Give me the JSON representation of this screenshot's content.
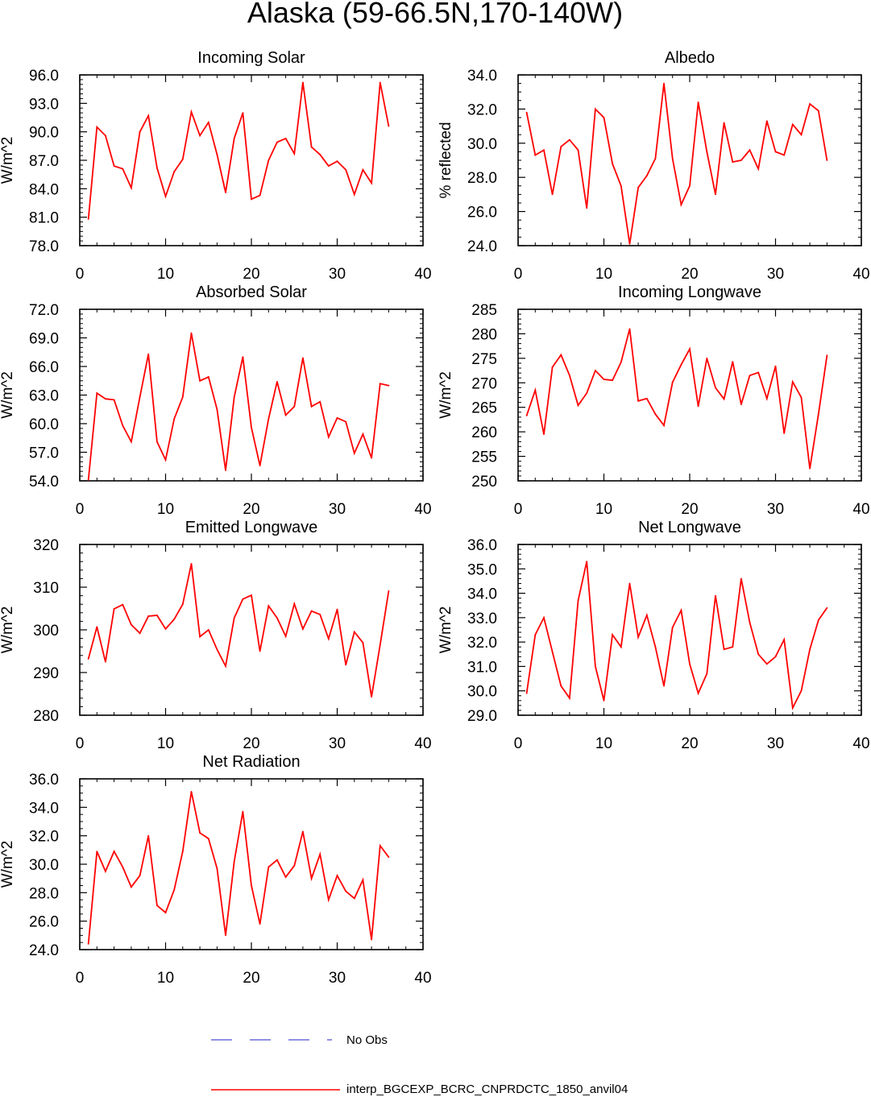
{
  "figure": {
    "title": "Alaska (59-66.5N,170-140W)",
    "legend": [
      {
        "label": "No Obs",
        "color": "#6b6bdc",
        "style": "dashed"
      },
      {
        "label": "interp_BGCEXP_BCRC_CNPRDCTC_1850_anvil04",
        "color": "#ff0000",
        "style": "solid"
      }
    ]
  },
  "chart_data": [
    {
      "type": "line",
      "title": "Incoming Solar",
      "xlabel": "",
      "ylabel": "W/m^2",
      "xlim": [
        0,
        40
      ],
      "ylim": [
        78,
        96
      ],
      "xticks": [
        0,
        10,
        20,
        30,
        40
      ],
      "yticks": [
        78,
        81,
        84,
        87,
        90,
        93,
        96
      ],
      "ytick_decimals": 1,
      "series": [
        {
          "name": "interp_BGCEXP_BCRC_CNPRDCTC_1850_anvil04",
          "color": "#ff0000",
          "x": [
            1,
            2,
            3,
            4,
            5,
            6,
            7,
            8,
            9,
            10,
            11,
            12,
            13,
            14,
            15,
            16,
            17,
            18,
            19,
            20,
            21,
            22,
            23,
            24,
            25,
            26,
            27,
            28,
            29,
            30,
            31,
            32,
            33,
            34,
            35,
            36
          ],
          "values": [
            80.8,
            90.5,
            89.6,
            86.4,
            86.1,
            84.1,
            90.0,
            91.7,
            86.2,
            83.2,
            85.8,
            87.1,
            92.1,
            89.6,
            91.0,
            87.6,
            83.6,
            89.3,
            92.0,
            82.9,
            83.3,
            87.0,
            88.9,
            89.3,
            87.7,
            95.2,
            88.4,
            87.6,
            86.4,
            86.9,
            86.0,
            83.4,
            86.0,
            84.6,
            95.2,
            90.6
          ]
        }
      ]
    },
    {
      "type": "line",
      "title": "Albedo",
      "xlabel": "",
      "ylabel": "% reflected",
      "xlim": [
        0,
        40
      ],
      "ylim": [
        24,
        34
      ],
      "xticks": [
        0,
        10,
        20,
        30,
        40
      ],
      "yticks": [
        24,
        26,
        28,
        30,
        32,
        34
      ],
      "ytick_decimals": 1,
      "series": [
        {
          "name": "interp_BGCEXP_BCRC_CNPRDCTC_1850_anvil04",
          "color": "#ff0000",
          "x": [
            1,
            2,
            3,
            4,
            5,
            6,
            7,
            8,
            9,
            10,
            11,
            12,
            13,
            14,
            15,
            16,
            17,
            18,
            19,
            20,
            21,
            22,
            23,
            24,
            25,
            26,
            27,
            28,
            29,
            30,
            31,
            32,
            33,
            34,
            35,
            36
          ],
          "values": [
            31.8,
            29.3,
            29.6,
            27.0,
            29.8,
            30.2,
            29.6,
            26.2,
            32.0,
            31.5,
            28.8,
            27.5,
            24.1,
            27.4,
            28.1,
            29.1,
            33.5,
            29.1,
            26.4,
            27.5,
            32.4,
            29.5,
            27.0,
            31.2,
            28.9,
            29.0,
            29.6,
            28.5,
            31.3,
            29.5,
            29.3,
            31.1,
            30.5,
            32.3,
            31.9,
            29.0
          ]
        }
      ]
    },
    {
      "type": "line",
      "title": "Absorbed Solar",
      "xlabel": "",
      "ylabel": "W/m^2",
      "xlim": [
        0,
        40
      ],
      "ylim": [
        54,
        72
      ],
      "xticks": [
        0,
        10,
        20,
        30,
        40
      ],
      "yticks": [
        54,
        57,
        60,
        63,
        66,
        69,
        72
      ],
      "ytick_decimals": 1,
      "series": [
        {
          "name": "interp_BGCEXP_BCRC_CNPRDCTC_1850_anvil04",
          "color": "#ff0000",
          "x": [
            1,
            2,
            3,
            4,
            5,
            6,
            7,
            8,
            9,
            10,
            11,
            12,
            13,
            14,
            15,
            16,
            17,
            18,
            19,
            20,
            21,
            22,
            23,
            24,
            25,
            26,
            27,
            28,
            29,
            30,
            31,
            32,
            33,
            34,
            35,
            36
          ],
          "values": [
            54.1,
            63.2,
            62.6,
            62.5,
            59.8,
            58.1,
            62.8,
            67.3,
            58.1,
            56.2,
            60.5,
            62.8,
            69.5,
            64.5,
            64.9,
            61.5,
            55.1,
            62.8,
            67.0,
            59.6,
            55.6,
            60.5,
            64.4,
            60.9,
            61.8,
            66.9,
            61.8,
            62.3,
            58.6,
            60.6,
            60.2,
            56.9,
            58.9,
            56.4,
            64.2,
            64.0
          ]
        }
      ]
    },
    {
      "type": "line",
      "title": "Incoming Longwave",
      "xlabel": "",
      "ylabel": "W/m^2",
      "xlim": [
        0,
        40
      ],
      "ylim": [
        250,
        285
      ],
      "xticks": [
        0,
        10,
        20,
        30,
        40
      ],
      "yticks": [
        250,
        255,
        260,
        265,
        270,
        275,
        280,
        285
      ],
      "ytick_decimals": 0,
      "series": [
        {
          "name": "interp_BGCEXP_BCRC_CNPRDCTC_1850_anvil04",
          "color": "#ff0000",
          "x": [
            1,
            2,
            3,
            4,
            5,
            6,
            7,
            8,
            9,
            10,
            11,
            12,
            13,
            14,
            15,
            16,
            17,
            18,
            19,
            20,
            21,
            22,
            23,
            24,
            25,
            26,
            27,
            28,
            29,
            30,
            31,
            32,
            33,
            34,
            35,
            36
          ],
          "values": [
            263.3,
            268.5,
            259.5,
            273.2,
            275.7,
            271.5,
            265.4,
            267.9,
            272.5,
            270.7,
            270.5,
            274.2,
            281.0,
            266.3,
            266.8,
            263.6,
            261.3,
            270.1,
            273.7,
            276.9,
            265.2,
            275.0,
            269.0,
            266.7,
            274.3,
            265.6,
            271.5,
            272.1,
            266.8,
            273.4,
            259.7,
            270.2,
            267.0,
            252.5,
            263.6,
            275.6
          ]
        }
      ]
    },
    {
      "type": "line",
      "title": "Emitted Longwave",
      "xlabel": "",
      "ylabel": "W/m^2",
      "xlim": [
        0,
        40
      ],
      "ylim": [
        280,
        320
      ],
      "xticks": [
        0,
        10,
        20,
        30,
        40
      ],
      "yticks": [
        280,
        290,
        300,
        310,
        320
      ],
      "ytick_decimals": 0,
      "series": [
        {
          "name": "interp_BGCEXP_BCRC_CNPRDCTC_1850_anvil04",
          "color": "#ff0000",
          "x": [
            1,
            2,
            3,
            4,
            5,
            6,
            7,
            8,
            9,
            10,
            11,
            12,
            13,
            14,
            15,
            16,
            17,
            18,
            19,
            20,
            21,
            22,
            23,
            24,
            25,
            26,
            27,
            28,
            29,
            30,
            31,
            32,
            33,
            34,
            35,
            36
          ],
          "values": [
            293.2,
            300.7,
            292.5,
            304.9,
            305.9,
            301.2,
            299.2,
            303.2,
            303.4,
            300.2,
            302.5,
            306.0,
            315.5,
            298.4,
            300.0,
            295.4,
            291.5,
            302.8,
            307.2,
            308.1,
            295.0,
            305.6,
            302.8,
            298.5,
            306.1,
            300.2,
            304.4,
            303.6,
            297.9,
            304.8,
            291.8,
            299.5,
            297.0,
            284.3,
            296.5,
            309.1
          ]
        }
      ]
    },
    {
      "type": "line",
      "title": "Net Longwave",
      "xlabel": "",
      "ylabel": "W/m^2",
      "xlim": [
        0,
        40
      ],
      "ylim": [
        29,
        36
      ],
      "xticks": [
        0,
        10,
        20,
        30,
        40
      ],
      "yticks": [
        29,
        30,
        31,
        32,
        33,
        34,
        35,
        36
      ],
      "ytick_decimals": 1,
      "series": [
        {
          "name": "interp_BGCEXP_BCRC_CNPRDCTC_1850_anvil04",
          "color": "#ff0000",
          "x": [
            1,
            2,
            3,
            4,
            5,
            6,
            7,
            8,
            9,
            10,
            11,
            12,
            13,
            14,
            15,
            16,
            17,
            18,
            19,
            20,
            21,
            22,
            23,
            24,
            25,
            26,
            27,
            28,
            29,
            30,
            31,
            32,
            33,
            34,
            35,
            36
          ],
          "values": [
            29.9,
            32.3,
            33.0,
            31.6,
            30.2,
            29.7,
            33.7,
            35.3,
            31.0,
            29.6,
            32.3,
            31.8,
            34.4,
            32.2,
            33.1,
            31.8,
            30.2,
            32.6,
            33.3,
            31.1,
            29.9,
            30.7,
            33.9,
            31.7,
            31.8,
            34.6,
            32.8,
            31.5,
            31.1,
            31.4,
            32.1,
            29.3,
            30.0,
            31.7,
            32.9,
            33.4
          ]
        }
      ]
    },
    {
      "type": "line",
      "title": "Net Radiation",
      "xlabel": "",
      "ylabel": "W/m^2",
      "xlim": [
        0,
        40
      ],
      "ylim": [
        24,
        36
      ],
      "xticks": [
        0,
        10,
        20,
        30,
        40
      ],
      "yticks": [
        24,
        26,
        28,
        30,
        32,
        34,
        36
      ],
      "ytick_decimals": 1,
      "series": [
        {
          "name": "interp_BGCEXP_BCRC_CNPRDCTC_1850_anvil04",
          "color": "#ff0000",
          "x": [
            1,
            2,
            3,
            4,
            5,
            6,
            7,
            8,
            9,
            10,
            11,
            12,
            13,
            14,
            15,
            16,
            17,
            18,
            19,
            20,
            21,
            22,
            23,
            24,
            25,
            26,
            27,
            28,
            29,
            30,
            31,
            32,
            33,
            34,
            35,
            36
          ],
          "values": [
            24.4,
            30.9,
            29.5,
            30.9,
            29.8,
            28.4,
            29.2,
            32.0,
            27.1,
            26.6,
            28.2,
            30.9,
            35.1,
            32.2,
            31.8,
            29.7,
            25.0,
            30.2,
            33.7,
            28.5,
            25.8,
            29.8,
            30.3,
            29.1,
            29.9,
            32.3,
            29.0,
            30.7,
            27.5,
            29.2,
            28.1,
            27.6,
            28.9,
            24.7,
            31.3,
            30.5
          ]
        }
      ]
    }
  ]
}
